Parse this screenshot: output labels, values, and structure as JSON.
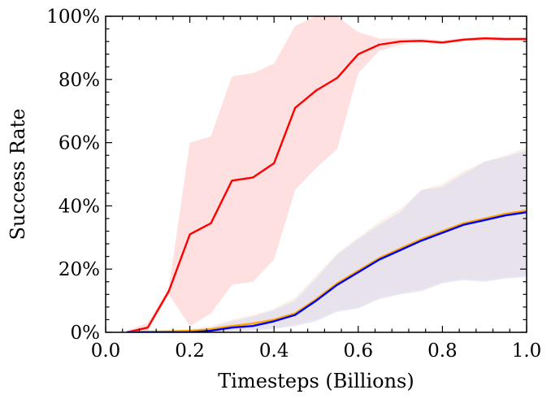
{
  "chart_data": {
    "type": "line",
    "title": "",
    "xlabel": "Timesteps (Billions)",
    "ylabel": "Success Rate",
    "xlim": [
      0.0,
      1.0
    ],
    "ylim": [
      0,
      100
    ],
    "x_ticks": [
      0.0,
      0.2,
      0.4,
      0.6,
      0.8,
      1.0
    ],
    "x_tick_labels": [
      "0.0",
      "0.2",
      "0.4",
      "0.6",
      "0.8",
      "1.0"
    ],
    "y_ticks": [
      0,
      20,
      40,
      60,
      80,
      100
    ],
    "y_tick_labels": [
      "0%",
      "20%",
      "40%",
      "60%",
      "80%",
      "100%"
    ],
    "grid": false,
    "legend": "none",
    "series": [
      {
        "color": "#ff0000",
        "band_color": "#ffcccc",
        "x": [
          0.05,
          0.1,
          0.15,
          0.2,
          0.25,
          0.3,
          0.35,
          0.4,
          0.45,
          0.5,
          0.55,
          0.6,
          0.65,
          0.7,
          0.75,
          0.8,
          0.85,
          0.9,
          0.95,
          1.0
        ],
        "y": [
          0,
          1.5,
          13,
          31,
          34.5,
          48,
          49,
          53.5,
          71,
          76.5,
          80.5,
          88,
          91,
          92,
          92.2,
          91.7,
          92.6,
          93,
          92.8,
          92.8
        ],
        "lower": [
          0,
          0.5,
          12,
          2,
          6,
          15,
          16,
          23,
          45,
          52,
          58,
          82,
          89,
          91,
          91.5,
          91.2,
          92,
          92.4,
          92.3,
          92.3
        ],
        "upper": [
          0.5,
          3,
          14,
          60,
          62,
          81,
          82,
          85,
          97,
          100,
          100,
          95,
          93,
          93,
          93,
          92.4,
          93.2,
          93.5,
          93.3,
          93.3
        ]
      },
      {
        "color": "#ffa500",
        "band_color": "#f6e6dc",
        "x": [
          0.05,
          0.1,
          0.15,
          0.2,
          0.25,
          0.3,
          0.35,
          0.4,
          0.45,
          0.5,
          0.55,
          0.6,
          0.65,
          0.7,
          0.75,
          0.8,
          0.85,
          0.9,
          0.95,
          1.0
        ],
        "y": [
          0,
          0.2,
          0.3,
          0.5,
          1,
          2,
          2.8,
          4,
          6,
          10.5,
          15.5,
          19.5,
          23.5,
          26.5,
          29.5,
          32,
          34.5,
          36,
          37.5,
          38.5
        ],
        "lower": [
          0,
          0,
          0,
          0,
          0,
          0.5,
          1,
          1.5,
          2.5,
          4,
          7,
          8,
          11,
          12.5,
          13.5,
          16,
          17,
          16.5,
          17.5,
          18
        ],
        "upper": [
          0,
          0.5,
          0.7,
          1,
          2,
          4,
          5.5,
          7.5,
          11,
          18,
          25,
          30,
          35,
          39,
          45,
          47,
          51,
          54,
          56,
          58.5
        ]
      },
      {
        "color": "#0000ff",
        "band_color": "#dcd8ec",
        "x": [
          0.05,
          0.1,
          0.15,
          0.2,
          0.25,
          0.3,
          0.35,
          0.4,
          0.45,
          0.5,
          0.55,
          0.6,
          0.65,
          0.7,
          0.75,
          0.8,
          0.85,
          0.9,
          0.95,
          1.0
        ],
        "y": [
          0,
          0,
          0,
          0,
          0.5,
          1.5,
          2,
          3.5,
          5.5,
          10,
          15,
          19,
          23,
          26,
          29,
          31.5,
          34,
          35.5,
          37,
          38
        ],
        "lower": [
          0,
          0,
          0,
          0,
          0,
          0,
          0.5,
          1,
          2,
          3.5,
          6.5,
          7.5,
          10.5,
          12,
          13,
          15.5,
          16.5,
          16,
          17,
          17.5
        ],
        "upper": [
          0,
          0,
          0.5,
          0.5,
          1.5,
          3.5,
          5,
          7,
          10,
          17,
          24.5,
          29.5,
          34,
          38,
          45,
          46,
          50,
          54,
          55.5,
          57.5
        ]
      }
    ]
  }
}
